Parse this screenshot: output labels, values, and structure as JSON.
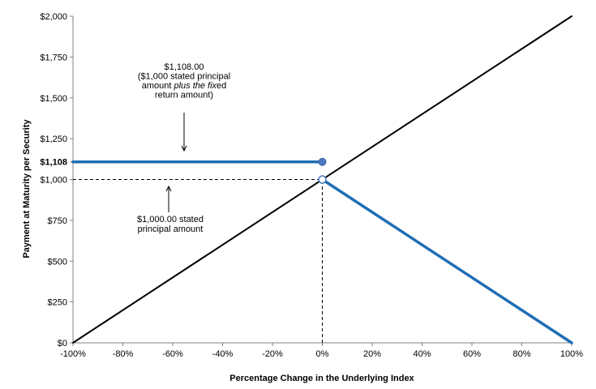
{
  "chart_data": {
    "type": "line",
    "title": "",
    "xlabel": "Percentage Change in the Underlying Index",
    "ylabel": "Payment at Maturity per Security",
    "xlim": [
      -100,
      100
    ],
    "ylim": [
      0,
      2000
    ],
    "x_ticks": [
      -100,
      -80,
      -60,
      -40,
      -20,
      0,
      20,
      40,
      60,
      80,
      100
    ],
    "x_tick_labels": [
      "-100%",
      "-80%",
      "-60%",
      "-40%",
      "-20%",
      "0%",
      "20%",
      "40%",
      "60%",
      "80%",
      "100%"
    ],
    "y_ticks": [
      0,
      250,
      500,
      750,
      1000,
      1250,
      1500,
      1750,
      2000
    ],
    "y_tick_labels": [
      "$0",
      "$250",
      "$500",
      "$750",
      "$1,000",
      "$1,250",
      "$1,500",
      "$1,750",
      "$2,000"
    ],
    "extra_y_tick": {
      "value": 1108,
      "label": "$1,108"
    },
    "grid": false,
    "legend": "none",
    "series": [
      {
        "color": "#000000",
        "points": [
          [
            -100,
            0
          ],
          [
            100,
            2000
          ]
        ]
      },
      {
        "color": "#1f6db5",
        "points": [
          [
            -100,
            1108
          ],
          [
            0,
            1108
          ]
        ]
      },
      {
        "color": "#1f6db5",
        "points": [
          [
            0,
            1000
          ],
          [
            100,
            0
          ]
        ]
      }
    ],
    "reference_lines": [
      {
        "type": "horizontal",
        "y": 1000,
        "x_from": -100,
        "x_to": 0,
        "style": "dashed"
      },
      {
        "type": "vertical",
        "x": 0,
        "y_from": 0,
        "y_to": 1000,
        "style": "dashed"
      }
    ],
    "markers": [
      {
        "x": 0,
        "y": 1108,
        "fill": "filled"
      },
      {
        "x": 0,
        "y": 1000,
        "fill": "open"
      }
    ],
    "annotations": [
      {
        "lines": [
          [
            {
              "text": "$1,108.00",
              "italic": false
            }
          ],
          [
            {
              "text": "($1,000 stated principal",
              "italic": false
            }
          ],
          [
            {
              "text": "amount ",
              "italic": false
            },
            {
              "text": "plus the fix",
              "italic": true
            },
            {
              "text": "ed",
              "italic": false
            }
          ],
          [
            {
              "text": "return amount)",
              "italic": false
            }
          ]
        ]
      },
      {
        "lines": [
          [
            {
              "text": "$1,000.00 stated",
              "italic": false
            }
          ],
          [
            {
              "text": "principal amount",
              "italic": false
            }
          ]
        ]
      }
    ]
  }
}
